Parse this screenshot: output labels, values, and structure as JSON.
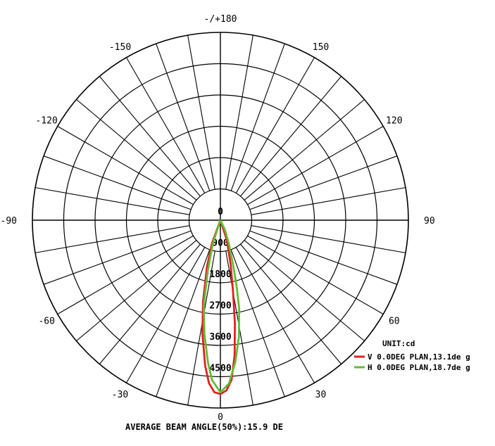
{
  "chart_data": {
    "type": "polar-line",
    "title": "",
    "angle_labels": [
      {
        "angle": 180,
        "text": "-/+180"
      },
      {
        "angle": 150,
        "text": "150"
      },
      {
        "angle": -150,
        "text": "-150"
      },
      {
        "angle": 120,
        "text": "120"
      },
      {
        "angle": -120,
        "text": "-120"
      },
      {
        "angle": 90,
        "text": "90"
      },
      {
        "angle": -90,
        "text": "-90"
      },
      {
        "angle": 60,
        "text": "60"
      },
      {
        "angle": -60,
        "text": "-60"
      },
      {
        "angle": 30,
        "text": "30"
      },
      {
        "angle": -30,
        "text": "-30"
      },
      {
        "angle": 0,
        "text": "0"
      }
    ],
    "radial_ticks": [
      0,
      900,
      1800,
      2700,
      3600,
      4500
    ],
    "radial_labels": [
      "0",
      "900",
      "1800",
      "2700",
      "3600",
      "4500"
    ],
    "r_max": 5400,
    "angle_step_deg": 10,
    "unit_label": "UNIT:cd",
    "series": [
      {
        "name": "V 0.0DEG PLAN,13.1de g",
        "color": "#e02020",
        "points": [
          [
            -20,
            700
          ],
          [
            -16,
            1400
          ],
          [
            -12,
            2400
          ],
          [
            -9,
            3300
          ],
          [
            -6,
            4200
          ],
          [
            -4,
            4700
          ],
          [
            -2,
            4950
          ],
          [
            0,
            5000
          ],
          [
            2,
            4900
          ],
          [
            4,
            4600
          ],
          [
            6,
            3900
          ],
          [
            8,
            3000
          ],
          [
            10,
            2100
          ],
          [
            13,
            1300
          ],
          [
            18,
            600
          ]
        ]
      },
      {
        "name": "H 0.0DEG PLAN,18.7de g",
        "color": "#66bb33",
        "points": [
          [
            -18,
            700
          ],
          [
            -14,
            1500
          ],
          [
            -11,
            2500
          ],
          [
            -8,
            3300
          ],
          [
            -5,
            4100
          ],
          [
            -3,
            4600
          ],
          [
            0,
            4950
          ],
          [
            3,
            4700
          ],
          [
            6,
            4100
          ],
          [
            9,
            3400
          ],
          [
            12,
            2600
          ],
          [
            14,
            1900
          ],
          [
            16,
            1300
          ],
          [
            20,
            700
          ],
          [
            25,
            300
          ]
        ]
      }
    ],
    "footer": "AVERAGE BEAM ANGLE(50%):15.9 DE",
    "grid": true,
    "legend_position": "bottom-right"
  }
}
